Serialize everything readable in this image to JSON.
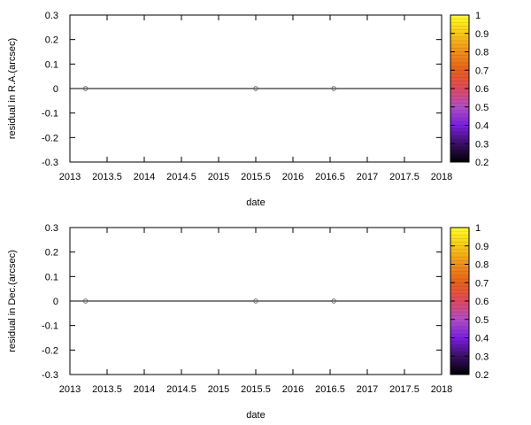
{
  "chart_data": [
    {
      "type": "scatter",
      "xlabel": "date",
      "ylabel": "residual in R.A.(arcsec)",
      "xlim": [
        2013,
        2018
      ],
      "ylim": [
        -0.3,
        0.3
      ],
      "x_ticks": [
        "2013",
        "2013.5",
        "2014",
        "2014.5",
        "2015",
        "2015.5",
        "2016",
        "2016.5",
        "2017",
        "2017.5",
        "2018"
      ],
      "y_ticks": [
        "-0.3",
        "-0.2",
        "-0.1",
        "0",
        "0.1",
        "0.2",
        "0.3"
      ],
      "zero_line": 0,
      "points": [
        {
          "x": 2013.21,
          "y": 0
        },
        {
          "x": 2015.5,
          "y": 0
        },
        {
          "x": 2016.55,
          "y": 0
        }
      ],
      "colorbar": {
        "range": [
          0.2,
          1
        ],
        "ticks": [
          "0.2",
          "0.3",
          "0.4",
          "0.5",
          "0.6",
          "0.7",
          "0.8",
          "0.9",
          "1"
        ],
        "palette": [
          "#000000",
          "#3a1066",
          "#7a20e0",
          "#b04ec8",
          "#e04860",
          "#e8601a",
          "#f0901a",
          "#f8c81a",
          "#ffff20"
        ]
      },
      "grid": false
    },
    {
      "type": "scatter",
      "xlabel": "date",
      "ylabel": "residual in Dec.(arcsec)",
      "xlim": [
        2013,
        2018
      ],
      "ylim": [
        -0.3,
        0.3
      ],
      "x_ticks": [
        "2013",
        "2013.5",
        "2014",
        "2014.5",
        "2015",
        "2015.5",
        "2016",
        "2016.5",
        "2017",
        "2017.5",
        "2018"
      ],
      "y_ticks": [
        "-0.3",
        "-0.2",
        "-0.1",
        "0",
        "0.1",
        "0.2",
        "0.3"
      ],
      "zero_line": 0,
      "points": [
        {
          "x": 2013.21,
          "y": 0
        },
        {
          "x": 2015.5,
          "y": 0
        },
        {
          "x": 2016.55,
          "y": 0
        }
      ],
      "colorbar": {
        "range": [
          0.2,
          1
        ],
        "ticks": [
          "0.2",
          "0.3",
          "0.4",
          "0.5",
          "0.6",
          "0.7",
          "0.8",
          "0.9",
          "1"
        ],
        "palette": [
          "#000000",
          "#3a1066",
          "#7a20e0",
          "#b04ec8",
          "#e04860",
          "#e8601a",
          "#f0901a",
          "#f8c81a",
          "#ffff20"
        ]
      },
      "grid": false
    }
  ]
}
